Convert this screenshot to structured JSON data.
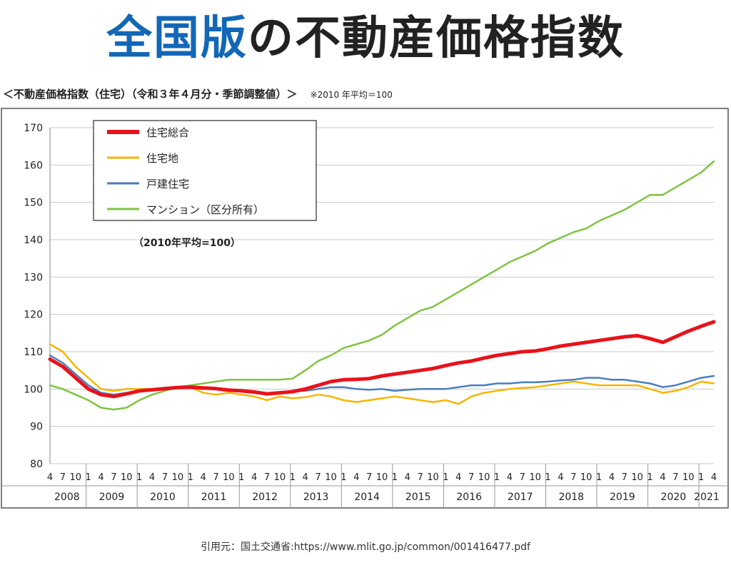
{
  "page": {
    "title_highlight": "全国版",
    "title_rest": "の不動産価格指数",
    "subtitle": "＜不動産価格指数（住宅）（令和３年４月分・季節調整値）＞",
    "subtitle_note": "※2010 年平均＝100",
    "citation": "引用元：国土交通省:https://www.mlit.go.jp/common/001416477.pdf"
  },
  "chart_data": {
    "type": "line",
    "annotation": "（2010年平均=100）",
    "ylim": [
      80,
      170
    ],
    "yticks": [
      80,
      90,
      100,
      110,
      120,
      130,
      140,
      150,
      160,
      170
    ],
    "grid": true,
    "legend_position": "top-left",
    "x_start": "2008-04",
    "x_end": "2021-04",
    "month_tick_labels": [
      "1",
      "4",
      "7",
      "10"
    ],
    "year_labels": [
      "2008",
      "2009",
      "2010",
      "2011",
      "2012",
      "2013",
      "2014",
      "2015",
      "2016",
      "2017",
      "2018",
      "2019",
      "2020",
      "2021"
    ],
    "series": [
      {
        "name": "住宅総合",
        "color": "#e8121b",
        "points": [
          [
            "2008-04",
            108
          ],
          [
            "2008-07",
            106
          ],
          [
            "2008-10",
            103
          ],
          [
            "2009-01",
            100
          ],
          [
            "2009-04",
            98.5
          ],
          [
            "2009-07",
            98
          ],
          [
            "2009-10",
            98.7
          ],
          [
            "2010-01",
            99.5
          ],
          [
            "2010-04",
            99.8
          ],
          [
            "2010-07",
            100.1
          ],
          [
            "2010-10",
            100.4
          ],
          [
            "2011-01",
            100.5
          ],
          [
            "2011-04",
            100.3
          ],
          [
            "2011-07",
            100.1
          ],
          [
            "2011-10",
            99.7
          ],
          [
            "2012-01",
            99.5
          ],
          [
            "2012-04",
            99.2
          ],
          [
            "2012-07",
            98.7
          ],
          [
            "2012-10",
            99
          ],
          [
            "2013-01",
            99.3
          ],
          [
            "2013-04",
            100
          ],
          [
            "2013-07",
            101
          ],
          [
            "2013-10",
            102
          ],
          [
            "2014-01",
            102.5
          ],
          [
            "2014-04",
            102.6
          ],
          [
            "2014-07",
            102.8
          ],
          [
            "2014-10",
            103.5
          ],
          [
            "2015-01",
            104
          ],
          [
            "2015-04",
            104.5
          ],
          [
            "2015-07",
            105
          ],
          [
            "2015-10",
            105.5
          ],
          [
            "2016-01",
            106.3
          ],
          [
            "2016-04",
            107
          ],
          [
            "2016-07",
            107.5
          ],
          [
            "2016-10",
            108.3
          ],
          [
            "2017-01",
            109
          ],
          [
            "2017-04",
            109.5
          ],
          [
            "2017-07",
            110
          ],
          [
            "2017-10",
            110.2
          ],
          [
            "2018-01",
            110.8
          ],
          [
            "2018-04",
            111.5
          ],
          [
            "2018-07",
            112
          ],
          [
            "2018-10",
            112.5
          ],
          [
            "2019-01",
            113
          ],
          [
            "2019-04",
            113.5
          ],
          [
            "2019-07",
            114
          ],
          [
            "2019-10",
            114.3
          ],
          [
            "2020-01",
            113.5
          ],
          [
            "2020-04",
            112.5
          ],
          [
            "2020-07",
            114
          ],
          [
            "2020-10",
            115.5
          ],
          [
            "2021-01",
            116.8
          ],
          [
            "2021-04",
            118
          ]
        ]
      },
      {
        "name": "住宅地",
        "color": "#f7b500",
        "points": [
          [
            "2008-04",
            112
          ],
          [
            "2008-07",
            110
          ],
          [
            "2008-10",
            106
          ],
          [
            "2009-01",
            103
          ],
          [
            "2009-04",
            100
          ],
          [
            "2009-07",
            99.5
          ],
          [
            "2009-10",
            100
          ],
          [
            "2010-01",
            100
          ],
          [
            "2010-04",
            100
          ],
          [
            "2010-07",
            100.2
          ],
          [
            "2010-10",
            100.3
          ],
          [
            "2011-01",
            100.5
          ],
          [
            "2011-04",
            99
          ],
          [
            "2011-07",
            98.5
          ],
          [
            "2011-10",
            99
          ],
          [
            "2012-01",
            98.5
          ],
          [
            "2012-04",
            98
          ],
          [
            "2012-07",
            97
          ],
          [
            "2012-10",
            98
          ],
          [
            "2013-01",
            97.5
          ],
          [
            "2013-04",
            97.8
          ],
          [
            "2013-07",
            98.5
          ],
          [
            "2013-10",
            98
          ],
          [
            "2014-01",
            97
          ],
          [
            "2014-04",
            96.5
          ],
          [
            "2014-07",
            97
          ],
          [
            "2014-10",
            97.5
          ],
          [
            "2015-01",
            98
          ],
          [
            "2015-04",
            97.5
          ],
          [
            "2015-07",
            97
          ],
          [
            "2015-10",
            96.5
          ],
          [
            "2016-01",
            97
          ],
          [
            "2016-04",
            96
          ],
          [
            "2016-07",
            98
          ],
          [
            "2016-10",
            99
          ],
          [
            "2017-01",
            99.5
          ],
          [
            "2017-04",
            100
          ],
          [
            "2017-07",
            100.3
          ],
          [
            "2017-10",
            100.5
          ],
          [
            "2018-01",
            101
          ],
          [
            "2018-04",
            101.5
          ],
          [
            "2018-07",
            102
          ],
          [
            "2018-10",
            101.5
          ],
          [
            "2019-01",
            101
          ],
          [
            "2019-04",
            101
          ],
          [
            "2019-07",
            101
          ],
          [
            "2019-10",
            101
          ],
          [
            "2020-01",
            100
          ],
          [
            "2020-04",
            99
          ],
          [
            "2020-07",
            99.5
          ],
          [
            "2020-10",
            100.5
          ],
          [
            "2021-01",
            102
          ],
          [
            "2021-04",
            101.5
          ]
        ]
      },
      {
        "name": "戸建住宅",
        "color": "#4a7ec0",
        "points": [
          [
            "2008-04",
            109
          ],
          [
            "2008-07",
            107
          ],
          [
            "2008-10",
            104
          ],
          [
            "2009-01",
            101
          ],
          [
            "2009-04",
            99
          ],
          [
            "2009-07",
            98.5
          ],
          [
            "2009-10",
            99
          ],
          [
            "2010-01",
            99.5
          ],
          [
            "2010-04",
            99.8
          ],
          [
            "2010-07",
            100
          ],
          [
            "2010-10",
            100.2
          ],
          [
            "2011-01",
            100.3
          ],
          [
            "2011-04",
            100
          ],
          [
            "2011-07",
            100
          ],
          [
            "2011-10",
            99.5
          ],
          [
            "2012-01",
            99.5
          ],
          [
            "2012-04",
            99
          ],
          [
            "2012-07",
            98.5
          ],
          [
            "2012-10",
            99
          ],
          [
            "2013-01",
            99.5
          ],
          [
            "2013-04",
            99.5
          ],
          [
            "2013-07",
            100
          ],
          [
            "2013-10",
            100.5
          ],
          [
            "2014-01",
            100.5
          ],
          [
            "2014-04",
            100
          ],
          [
            "2014-07",
            99.8
          ],
          [
            "2014-10",
            100
          ],
          [
            "2015-01",
            99.5
          ],
          [
            "2015-04",
            99.8
          ],
          [
            "2015-07",
            100
          ],
          [
            "2015-10",
            100
          ],
          [
            "2016-01",
            100
          ],
          [
            "2016-04",
            100.5
          ],
          [
            "2016-07",
            101
          ],
          [
            "2016-10",
            101
          ],
          [
            "2017-01",
            101.5
          ],
          [
            "2017-04",
            101.5
          ],
          [
            "2017-07",
            101.8
          ],
          [
            "2017-10",
            101.8
          ],
          [
            "2018-01",
            102
          ],
          [
            "2018-04",
            102.3
          ],
          [
            "2018-07",
            102.5
          ],
          [
            "2018-10",
            103
          ],
          [
            "2019-01",
            103
          ],
          [
            "2019-04",
            102.5
          ],
          [
            "2019-07",
            102.5
          ],
          [
            "2019-10",
            102
          ],
          [
            "2020-01",
            101.5
          ],
          [
            "2020-04",
            100.5
          ],
          [
            "2020-07",
            101
          ],
          [
            "2020-10",
            102
          ],
          [
            "2021-01",
            103
          ],
          [
            "2021-04",
            103.5
          ]
        ]
      },
      {
        "name": "マンション（区分所有）",
        "color": "#80c342",
        "points": [
          [
            "2008-04",
            101
          ],
          [
            "2008-07",
            100
          ],
          [
            "2008-10",
            98.5
          ],
          [
            "2009-01",
            97
          ],
          [
            "2009-04",
            95
          ],
          [
            "2009-07",
            94.5
          ],
          [
            "2009-10",
            95
          ],
          [
            "2010-01",
            97
          ],
          [
            "2010-04",
            98.5
          ],
          [
            "2010-07",
            99.5
          ],
          [
            "2010-10",
            100.5
          ],
          [
            "2011-01",
            101
          ],
          [
            "2011-04",
            101.5
          ],
          [
            "2011-07",
            102
          ],
          [
            "2011-10",
            102.5
          ],
          [
            "2012-01",
            102.5
          ],
          [
            "2012-04",
            102.5
          ],
          [
            "2012-07",
            102.5
          ],
          [
            "2012-10",
            102.5
          ],
          [
            "2013-01",
            102.8
          ],
          [
            "2013-04",
            105
          ],
          [
            "2013-07",
            107.5
          ],
          [
            "2013-10",
            109
          ],
          [
            "2014-01",
            111
          ],
          [
            "2014-04",
            112
          ],
          [
            "2014-07",
            113
          ],
          [
            "2014-10",
            114.5
          ],
          [
            "2015-01",
            117
          ],
          [
            "2015-04",
            119
          ],
          [
            "2015-07",
            121
          ],
          [
            "2015-10",
            122
          ],
          [
            "2016-01",
            124
          ],
          [
            "2016-04",
            126
          ],
          [
            "2016-07",
            128
          ],
          [
            "2016-10",
            130
          ],
          [
            "2017-01",
            132
          ],
          [
            "2017-04",
            134
          ],
          [
            "2017-07",
            135.5
          ],
          [
            "2017-10",
            137
          ],
          [
            "2018-01",
            139
          ],
          [
            "2018-04",
            140.5
          ],
          [
            "2018-07",
            142
          ],
          [
            "2018-10",
            143
          ],
          [
            "2019-01",
            145
          ],
          [
            "2019-04",
            146.5
          ],
          [
            "2019-07",
            148
          ],
          [
            "2019-10",
            150
          ],
          [
            "2020-01",
            152
          ],
          [
            "2020-04",
            152
          ],
          [
            "2020-07",
            154
          ],
          [
            "2020-10",
            156
          ],
          [
            "2021-01",
            158
          ],
          [
            "2021-04",
            161
          ]
        ]
      }
    ]
  }
}
